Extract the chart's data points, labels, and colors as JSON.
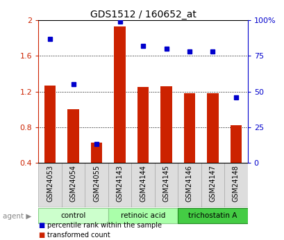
{
  "title": "GDS1512 / 160652_at",
  "categories": [
    "GSM24053",
    "GSM24054",
    "GSM24055",
    "GSM24143",
    "GSM24144",
    "GSM24145",
    "GSM24146",
    "GSM24147",
    "GSM24148"
  ],
  "bar_values": [
    1.27,
    1.0,
    0.63,
    1.93,
    1.25,
    1.26,
    1.18,
    1.18,
    0.82
  ],
  "scatter_values": [
    87,
    55,
    13,
    99,
    82,
    80,
    78,
    78,
    46
  ],
  "bar_color": "#cc2200",
  "scatter_color": "#0000cc",
  "ylim_left": [
    0.4,
    2.0
  ],
  "ylim_right": [
    0,
    100
  ],
  "yticks_left": [
    0.4,
    0.8,
    1.2,
    1.6,
    2.0
  ],
  "ytick_labels_left": [
    "0.4",
    "0.8",
    "1.2",
    "1.6",
    "2"
  ],
  "yticks_right": [
    0,
    25,
    50,
    75,
    100
  ],
  "ytick_labels_right": [
    "0",
    "25",
    "50",
    "75",
    "100%"
  ],
  "groups": [
    {
      "label": "control",
      "span": [
        0,
        2
      ],
      "color": "#ccffcc",
      "edge": "#88cc88"
    },
    {
      "label": "retinoic acid",
      "span": [
        3,
        5
      ],
      "color": "#aaffaa",
      "edge": "#88cc88"
    },
    {
      "label": "trichostatin A",
      "span": [
        6,
        8
      ],
      "color": "#44cc44",
      "edge": "#228822"
    }
  ],
  "legend_items": [
    {
      "label": "transformed count",
      "color": "#cc2200"
    },
    {
      "label": "percentile rank within the sample",
      "color": "#0000cc"
    }
  ],
  "agent_label": "agent",
  "bar_width": 0.5,
  "tick_label_color_left": "#cc2200",
  "tick_label_color_right": "#0000cc",
  "xtick_bg": "#dddddd",
  "xtick_edge": "#aaaaaa"
}
